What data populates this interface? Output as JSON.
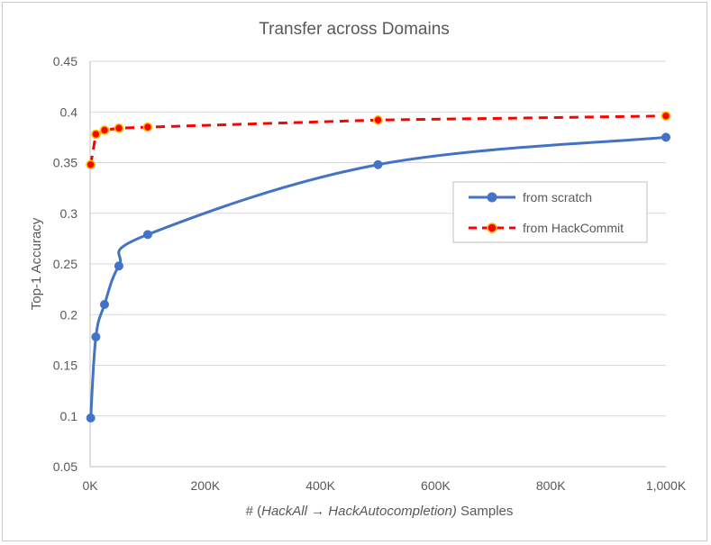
{
  "chart_data": {
    "type": "line",
    "title": "Transfer across Domains",
    "xlabel_prefix": "# (",
    "xlabel_italic": "HackAll → HackAutocompletion)",
    "xlabel_suffix": " Samples",
    "ylabel": "Top-1 Accuracy",
    "xlim": [
      0,
      1000000
    ],
    "ylim": [
      0.05,
      0.45
    ],
    "x_ticks": [
      {
        "value": 0,
        "label": "0K"
      },
      {
        "value": 200000,
        "label": "200K"
      },
      {
        "value": 400000,
        "label": "400K"
      },
      {
        "value": 600000,
        "label": "600K"
      },
      {
        "value": 800000,
        "label": "800K"
      },
      {
        "value": 1000000,
        "label": "1,000K"
      }
    ],
    "y_ticks": [
      {
        "value": 0.05,
        "label": "0.05"
      },
      {
        "value": 0.1,
        "label": "0.1"
      },
      {
        "value": 0.15,
        "label": "0.15"
      },
      {
        "value": 0.2,
        "label": "0.2"
      },
      {
        "value": 0.25,
        "label": "0.25"
      },
      {
        "value": 0.3,
        "label": "0.3"
      },
      {
        "value": 0.35,
        "label": "0.35"
      },
      {
        "value": 0.4,
        "label": "0.4"
      },
      {
        "value": 0.45,
        "label": "0.45"
      }
    ],
    "grid": true,
    "legend_position": "right",
    "series": [
      {
        "name": "from scratch",
        "color": "#4472c4",
        "dashed": false,
        "marker_edge": "#4472c4",
        "points": [
          [
            1000,
            0.098
          ],
          [
            10000,
            0.178
          ],
          [
            25000,
            0.21
          ],
          [
            50000,
            0.248
          ],
          [
            100000,
            0.279
          ],
          [
            500000,
            0.348
          ],
          [
            1000000,
            0.375
          ]
        ]
      },
      {
        "name": "from HackCommit",
        "color": "#ff0000",
        "dashed": true,
        "marker_edge": "#ffc000",
        "points": [
          [
            1000,
            0.348
          ],
          [
            10000,
            0.378
          ],
          [
            25000,
            0.382
          ],
          [
            50000,
            0.384
          ],
          [
            100000,
            0.385
          ],
          [
            500000,
            0.392
          ],
          [
            1000000,
            0.396
          ]
        ]
      }
    ]
  }
}
